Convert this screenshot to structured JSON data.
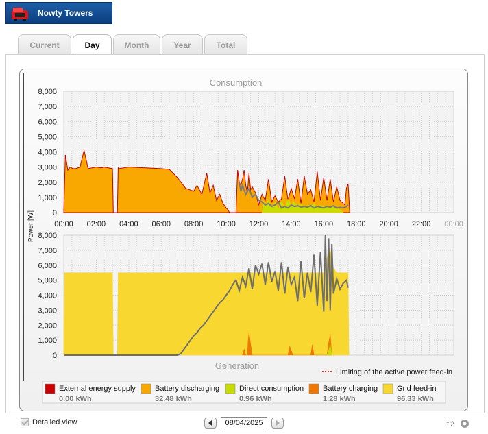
{
  "header": {
    "title": "Nowty Towers"
  },
  "tabs": [
    {
      "label": "Current",
      "active": false
    },
    {
      "label": "Day",
      "active": true
    },
    {
      "label": "Month",
      "active": false
    },
    {
      "label": "Year",
      "active": false
    },
    {
      "label": "Total",
      "active": false
    }
  ],
  "chart_data": [
    {
      "type": "area",
      "title": "Consumption",
      "ylabel": "Power [W]",
      "ylim": [
        0,
        8000
      ],
      "yticks": [
        "0",
        "1,000",
        "2,000",
        "3,000",
        "4,000",
        "5,000",
        "6,000",
        "7,000",
        "8,000"
      ],
      "xticks": [
        "00:00",
        "02:00",
        "04:00",
        "06:00",
        "08:00",
        "10:00",
        "12:00",
        "14:00",
        "16:00",
        "18:00",
        "20:00",
        "22:00",
        "00:00"
      ],
      "grid": true,
      "series": [
        {
          "name": "Battery discharging",
          "color": "#f8a800",
          "x": [
            0.0,
            0.1,
            0.25,
            0.4,
            0.55,
            0.75,
            1.0,
            1.25,
            1.5,
            2.0,
            2.3,
            2.5,
            2.75,
            3.0,
            3.05,
            3.1,
            3.2,
            3.3,
            3.35,
            3.4,
            4.0,
            5.0,
            6.0,
            6.5,
            7.0,
            7.5,
            8.0,
            8.2,
            8.5,
            8.8,
            9.0,
            9.2,
            9.4,
            9.6,
            9.8,
            10.0,
            10.1,
            10.15,
            10.2,
            10.3,
            10.4,
            10.45,
            10.5,
            10.6,
            10.7,
            10.8,
            10.9,
            11.0,
            11.1,
            11.2,
            11.3,
            11.4,
            11.5,
            11.6,
            11.8,
            12.0,
            12.2,
            12.4,
            12.6,
            12.8,
            13.0,
            13.2,
            13.4,
            13.6,
            13.8,
            14.0,
            14.2,
            14.4,
            14.6,
            14.8,
            15.0,
            15.2,
            15.4,
            15.6,
            15.8,
            16.0,
            16.2,
            16.4,
            16.6,
            16.8,
            17.0,
            17.2,
            17.3,
            17.4,
            17.5,
            17.6
          ],
          "y": [
            0,
            3800,
            2800,
            3000,
            2900,
            2900,
            3000,
            4100,
            2900,
            3000,
            2950,
            3000,
            2950,
            2900,
            0,
            0,
            0,
            0,
            2950,
            2900,
            3000,
            2950,
            2900,
            2850,
            2300,
            1600,
            1400,
            1800,
            1200,
            2600,
            1300,
            1800,
            800,
            1200,
            600,
            300,
            200,
            100,
            0,
            0,
            0,
            0,
            0,
            0,
            2800,
            2000,
            1800,
            2200,
            2800,
            1800,
            1300,
            2600,
            1500,
            1700,
            1300,
            500,
            1200,
            800,
            2200,
            700,
            1100,
            700,
            900,
            2400,
            800,
            1600,
            900,
            2200,
            600,
            2400,
            1200,
            1500,
            700,
            2700,
            800,
            2300,
            800,
            2200,
            700,
            1700,
            800,
            600,
            500,
            1600,
            1900,
            0
          ]
        },
        {
          "name": "Direct consumption",
          "color": "#c8dc00",
          "x": [
            12.2,
            12.3,
            12.4,
            12.6,
            12.8,
            13.0,
            13.2,
            13.4,
            13.6,
            13.8,
            14.0,
            14.2,
            14.4,
            14.6,
            14.8,
            15.0,
            15.2,
            15.4,
            15.6,
            15.8,
            16.0,
            16.2,
            16.4,
            16.6,
            16.8,
            17.0,
            17.2
          ],
          "y": [
            0,
            800,
            400,
            900,
            300,
            700,
            200,
            800,
            300,
            900,
            500,
            700,
            400,
            600,
            300,
            500,
            400,
            600,
            300,
            500,
            400,
            400,
            300,
            500,
            300,
            200,
            0
          ]
        }
      ],
      "lines": [
        {
          "name": "Consumption",
          "color": "#7a7a7a",
          "x": [
            10.8,
            10.9,
            11.0,
            11.2,
            11.4,
            11.6,
            11.8,
            12.0,
            12.2,
            12.4,
            12.6,
            12.8,
            13.0,
            13.2,
            13.4,
            13.6,
            13.8,
            14.0,
            14.2,
            14.4,
            14.6,
            14.8,
            15.0,
            15.2,
            15.4,
            15.6,
            15.8,
            16.0,
            16.2,
            16.4,
            16.6,
            16.8,
            17.0,
            17.2,
            17.4,
            17.5
          ],
          "y": [
            2000,
            1400,
            1800,
            1200,
            1600,
            1000,
            1200,
            800,
            700,
            500,
            600,
            400,
            500,
            700,
            300,
            400,
            300,
            500,
            400,
            450,
            350,
            400,
            350,
            450,
            300,
            400,
            350,
            300,
            400,
            350,
            450,
            300,
            350,
            300,
            400,
            500
          ]
        }
      ]
    },
    {
      "type": "area",
      "title": "Generation",
      "ylabel": "Power [W]",
      "ylim": [
        0,
        8000
      ],
      "yticks": [
        "0",
        "1,000",
        "2,000",
        "3,000",
        "4,000",
        "5,000",
        "6,000",
        "7,000",
        "8,000"
      ],
      "grid": true,
      "series": [
        {
          "name": "Grid feed-in",
          "color": "#f8d830",
          "x": [
            0.0,
            0.05,
            0.1,
            3.0,
            3.05,
            3.3,
            3.35,
            3.4,
            12.0,
            12.5,
            13.0,
            13.5,
            14.0,
            14.5,
            15.0,
            15.5,
            16.0,
            16.2,
            16.4,
            16.6,
            16.8,
            17.0,
            17.5,
            17.55
          ],
          "y": [
            0,
            5500,
            5500,
            5500,
            0,
            0,
            5500,
            5500,
            5500,
            5500,
            5500,
            5500,
            5500,
            5500,
            5500,
            5500,
            5500,
            6500,
            7000,
            5800,
            5500,
            5500,
            5500,
            0
          ]
        },
        {
          "name": "Battery charging",
          "color": "#f07800",
          "x": [
            11.0,
            11.1,
            11.2,
            11.3,
            11.35,
            11.4,
            11.6,
            11.7,
            13.8,
            13.9,
            14.0,
            14.1,
            15.2,
            15.3,
            15.4,
            16.2,
            16.3,
            16.4,
            16.5
          ],
          "y": [
            0,
            400,
            0,
            0,
            1000,
            1500,
            0,
            0,
            0,
            600,
            300,
            0,
            0,
            700,
            0,
            0,
            800,
            1400,
            0
          ]
        },
        {
          "name": "Direct consumption",
          "color": "#c8dc00",
          "x": [
            16.2,
            16.3,
            16.4,
            16.5
          ],
          "y": [
            0,
            300,
            700,
            0
          ]
        }
      ],
      "lines": [
        {
          "name": "Generation",
          "color": "#6e6e6e",
          "x": [
            0.0,
            7.0,
            7.2,
            7.4,
            7.6,
            7.8,
            8.0,
            8.2,
            8.4,
            8.6,
            8.8,
            9.0,
            9.2,
            9.4,
            9.6,
            9.8,
            10.0,
            10.2,
            10.4,
            10.6,
            10.8,
            11.0,
            11.2,
            11.4,
            11.6,
            11.8,
            12.0,
            12.2,
            12.4,
            12.6,
            12.8,
            13.0,
            13.2,
            13.4,
            13.6,
            13.8,
            14.0,
            14.2,
            14.4,
            14.6,
            14.8,
            15.0,
            15.2,
            15.4,
            15.6,
            15.8,
            16.0,
            16.1,
            16.2,
            16.3,
            16.4,
            16.5,
            16.6,
            16.8,
            17.0,
            17.2,
            17.4,
            17.5
          ],
          "y": [
            0,
            0,
            100,
            400,
            700,
            1000,
            1300,
            1500,
            1800,
            2000,
            2300,
            2600,
            2900,
            3200,
            3500,
            3700,
            4000,
            4300,
            4700,
            5000,
            4300,
            5200,
            4600,
            5800,
            4400,
            6000,
            5400,
            6100,
            4700,
            6200,
            4900,
            5600,
            4300,
            6200,
            4100,
            5900,
            4700,
            5200,
            3600,
            6300,
            3800,
            5500,
            4200,
            6700,
            3300,
            6900,
            2900,
            8000,
            3600,
            7800,
            3000,
            7400,
            4100,
            5100,
            4400,
            4800,
            5000,
            4500
          ]
        }
      ]
    }
  ],
  "limit_label": "Limiting of the active power feed-in",
  "legend": [
    {
      "label": "External energy supply",
      "value": "0.00 kWh",
      "color": "#cc0000"
    },
    {
      "label": "Battery discharging",
      "value": "32.48 kWh",
      "color": "#f8a800"
    },
    {
      "label": "Direct consumption",
      "value": "0.96 kWh",
      "color": "#c8dc00"
    },
    {
      "label": "Battery charging",
      "value": "1.28 kWh",
      "color": "#f07800"
    },
    {
      "label": "Grid feed-in",
      "value": "96.33 kWh",
      "color": "#f8d830"
    }
  ],
  "footer": {
    "detailed_view_label": "Detailed view",
    "date": "08/04/2025",
    "detailed_view_checked": true
  }
}
